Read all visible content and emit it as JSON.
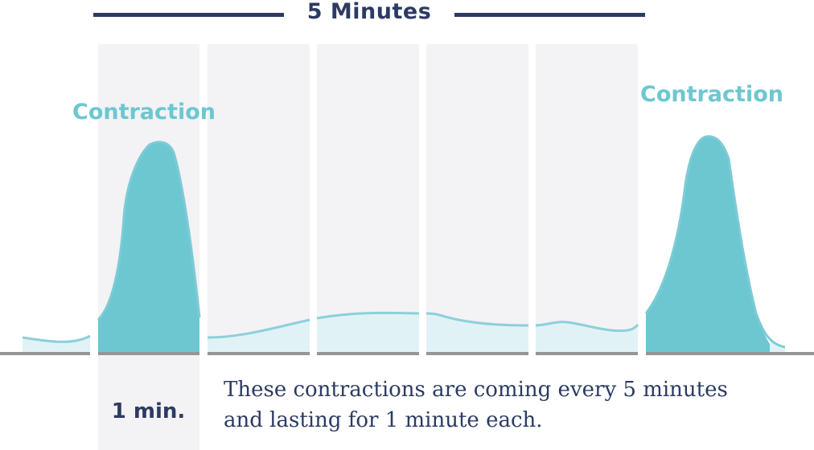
{
  "header": {
    "title": "5 Minutes"
  },
  "contractions": [
    {
      "label": "Contraction"
    },
    {
      "label": "Contraction"
    }
  ],
  "duration_label": "1 min.",
  "caption": {
    "line1": "These contractions are coming every 5 minutes",
    "line2": "and lasting for 1 minute each."
  },
  "colors": {
    "navy": "#2c3b63",
    "contraction_fill": "#6cc7d1",
    "rest_fill": "#e1f2f6",
    "panel": "#f3f2f5",
    "baseline": "#959595"
  }
}
